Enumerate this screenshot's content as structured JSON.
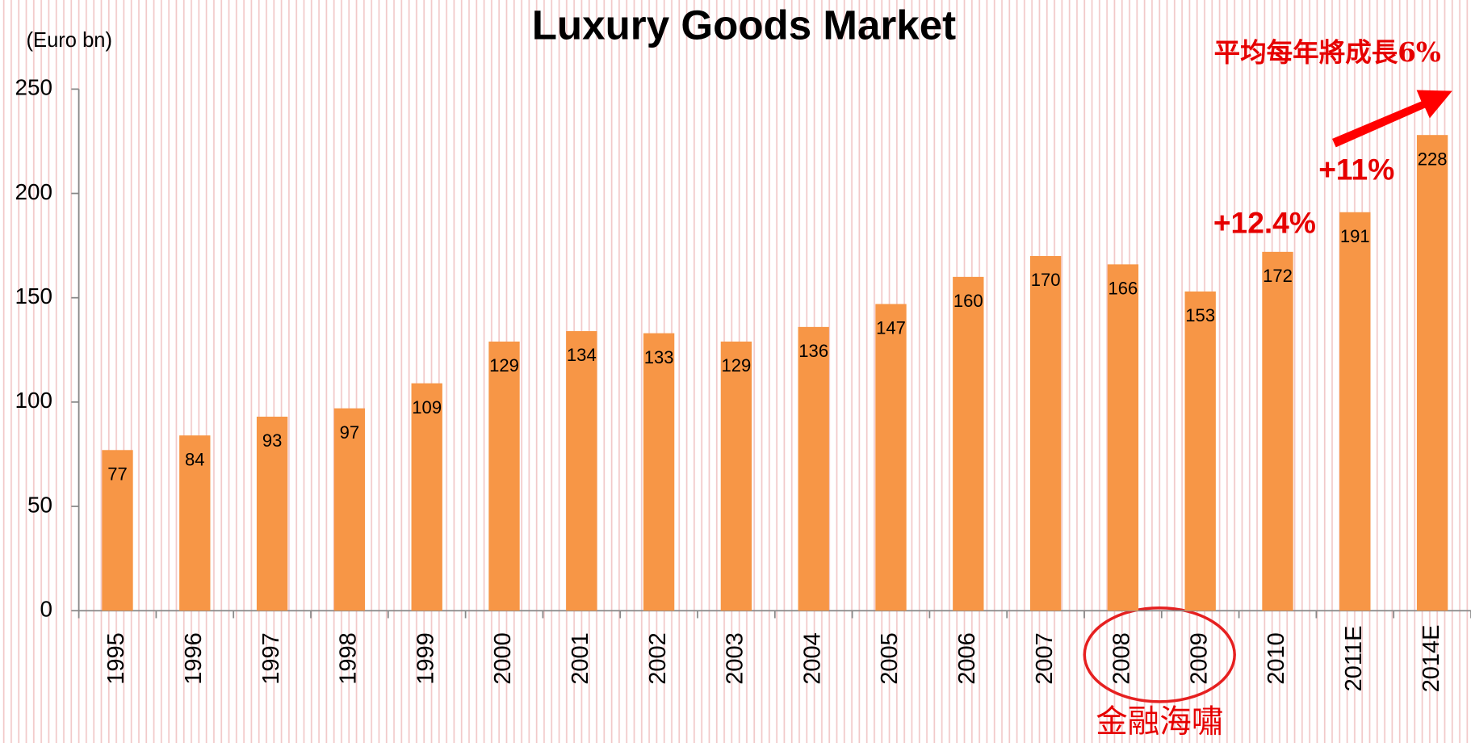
{
  "chart_data": {
    "type": "bar",
    "title": "Luxury Goods Market",
    "y_label": "(Euro bn)",
    "categories": [
      "1995",
      "1996",
      "1997",
      "1998",
      "1999",
      "2000",
      "2001",
      "2002",
      "2003",
      "2004",
      "2005",
      "2006",
      "2007",
      "2008",
      "2009",
      "2010",
      "2011E",
      "2014E"
    ],
    "values": [
      77,
      84,
      93,
      97,
      109,
      129,
      134,
      133,
      129,
      136,
      147,
      160,
      170,
      166,
      153,
      172,
      191,
      228
    ],
    "color": "#f79646",
    "ylim": [
      0,
      250
    ],
    "yticks": [
      0,
      50,
      100,
      150,
      200,
      250
    ],
    "annotations": [
      "+12.4%",
      "+11%",
      "平均每年將成長6%",
      "金融海嘯"
    ]
  }
}
